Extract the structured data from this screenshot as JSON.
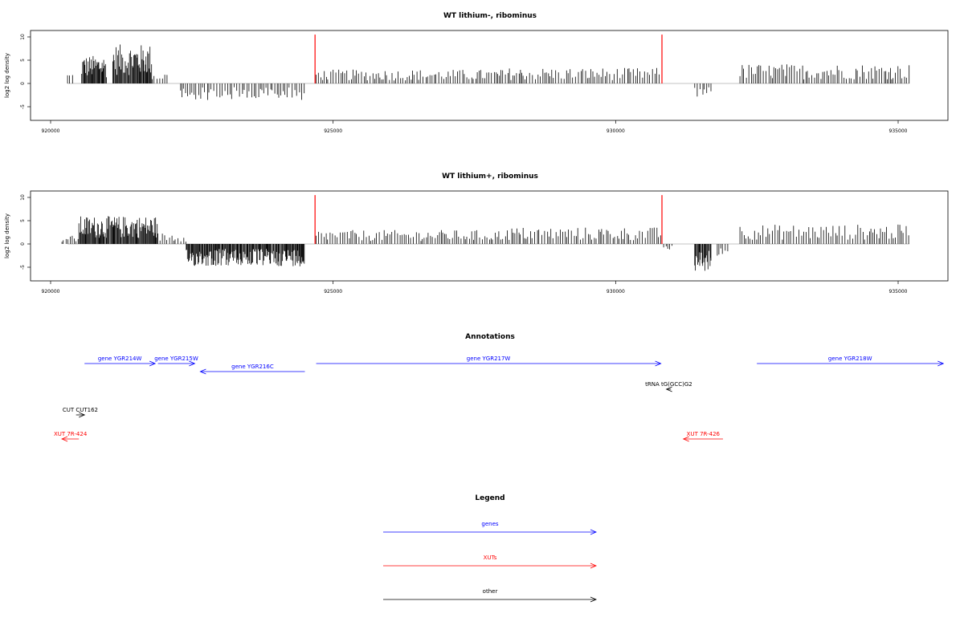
{
  "chart_data": [
    {
      "type": "bar",
      "title": "WT lithium-, ribominus",
      "ylabel": "log2 log density",
      "xlabel": "",
      "xlim": [
        919800,
        935800
      ],
      "ylim": [
        -8,
        11
      ],
      "x_ticks": [
        "920000",
        "925000",
        "930000",
        "935000"
      ],
      "y_ticks": [
        "-5",
        "0",
        "5",
        "10"
      ],
      "coverage": [
        {
          "from": 920300,
          "to": 920400,
          "level": 2
        },
        {
          "from": 920550,
          "to": 921000,
          "level": 5
        },
        {
          "from": 921100,
          "to": 921800,
          "level": 7
        },
        {
          "from": 921800,
          "to": 922100,
          "level": 2
        },
        {
          "from": 922300,
          "to": 923400,
          "level": -3
        },
        {
          "from": 923400,
          "to": 924500,
          "level": -3
        },
        {
          "from": 924700,
          "to": 928000,
          "level": 2.5
        },
        {
          "from": 928000,
          "to": 930800,
          "level": 2.8
        },
        {
          "from": 931400,
          "to": 931700,
          "level": -2.5
        },
        {
          "from": 932200,
          "to": 935200,
          "level": 3.5
        }
      ],
      "highlights": [
        {
          "x": 924680,
          "y": 10.5
        },
        {
          "x": 930820,
          "y": 10.5
        }
      ]
    },
    {
      "type": "bar",
      "title": "WT lithium+, ribominus",
      "ylabel": "log2 log density",
      "xlabel": "",
      "xlim": [
        919800,
        935800
      ],
      "ylim": [
        -8,
        11
      ],
      "x_ticks": [
        "920000",
        "925000",
        "930000",
        "935000"
      ],
      "y_ticks": [
        "-5",
        "0",
        "5",
        "10"
      ],
      "coverage": [
        {
          "from": 920200,
          "to": 920500,
          "level": 1.5
        },
        {
          "from": 920500,
          "to": 921900,
          "level": 5
        },
        {
          "from": 921900,
          "to": 922400,
          "level": 2
        },
        {
          "from": 922400,
          "to": 924500,
          "level": -4
        },
        {
          "from": 924700,
          "to": 928000,
          "level": 2.5
        },
        {
          "from": 928000,
          "to": 930800,
          "level": 3
        },
        {
          "from": 930850,
          "to": 931000,
          "level": -1
        },
        {
          "from": 931400,
          "to": 931700,
          "level": -5
        },
        {
          "from": 931800,
          "to": 932000,
          "level": -3
        },
        {
          "from": 932200,
          "to": 935200,
          "level": 3.5
        }
      ],
      "highlights": [
        {
          "x": 924680,
          "y": 10.5
        },
        {
          "x": 930820,
          "y": 10.5
        }
      ]
    }
  ],
  "annotations": {
    "title": "Annotations",
    "items": [
      {
        "label": "gene YGR214W",
        "start": 920600,
        "end": 921850,
        "strand": "+",
        "row": 0,
        "kind": "gene"
      },
      {
        "label": "gene YGR215W",
        "start": 921900,
        "end": 922550,
        "strand": "+",
        "row": 0,
        "kind": "gene"
      },
      {
        "label": "gene YGR216C",
        "start": 922650,
        "end": 924500,
        "strand": "-",
        "row": 1,
        "kind": "gene"
      },
      {
        "label": "gene YGR217W",
        "start": 924700,
        "end": 930800,
        "strand": "+",
        "row": 0,
        "kind": "gene"
      },
      {
        "label": "gene YGR218W",
        "start": 932500,
        "end": 935800,
        "strand": "+",
        "row": 0,
        "kind": "gene"
      },
      {
        "label": "tRNA tG(GCC)G2",
        "start": 930900,
        "end": 930980,
        "strand": "-",
        "row": 2,
        "kind": "other"
      },
      {
        "label": "CUT CUT162",
        "start": 920450,
        "end": 920600,
        "strand": "+",
        "row": 3,
        "kind": "other"
      },
      {
        "label": "XUT 7R-424",
        "start": 920200,
        "end": 920500,
        "strand": "-",
        "row": 4,
        "kind": "xut"
      },
      {
        "label": "XUT 7R-426",
        "start": 931200,
        "end": 931900,
        "strand": "-",
        "row": 4,
        "kind": "xut"
      }
    ]
  },
  "legend": {
    "title": "Legend",
    "items": [
      {
        "label": "genes",
        "kind": "gene"
      },
      {
        "label": "XUTs",
        "kind": "xut"
      },
      {
        "label": "other",
        "kind": "other"
      }
    ]
  },
  "colors": {
    "gene": "#0000ff",
    "xut": "#ff0000",
    "other": "#000000",
    "bars": "#000000",
    "highlight": "#ff0000",
    "zero": "#888888"
  }
}
